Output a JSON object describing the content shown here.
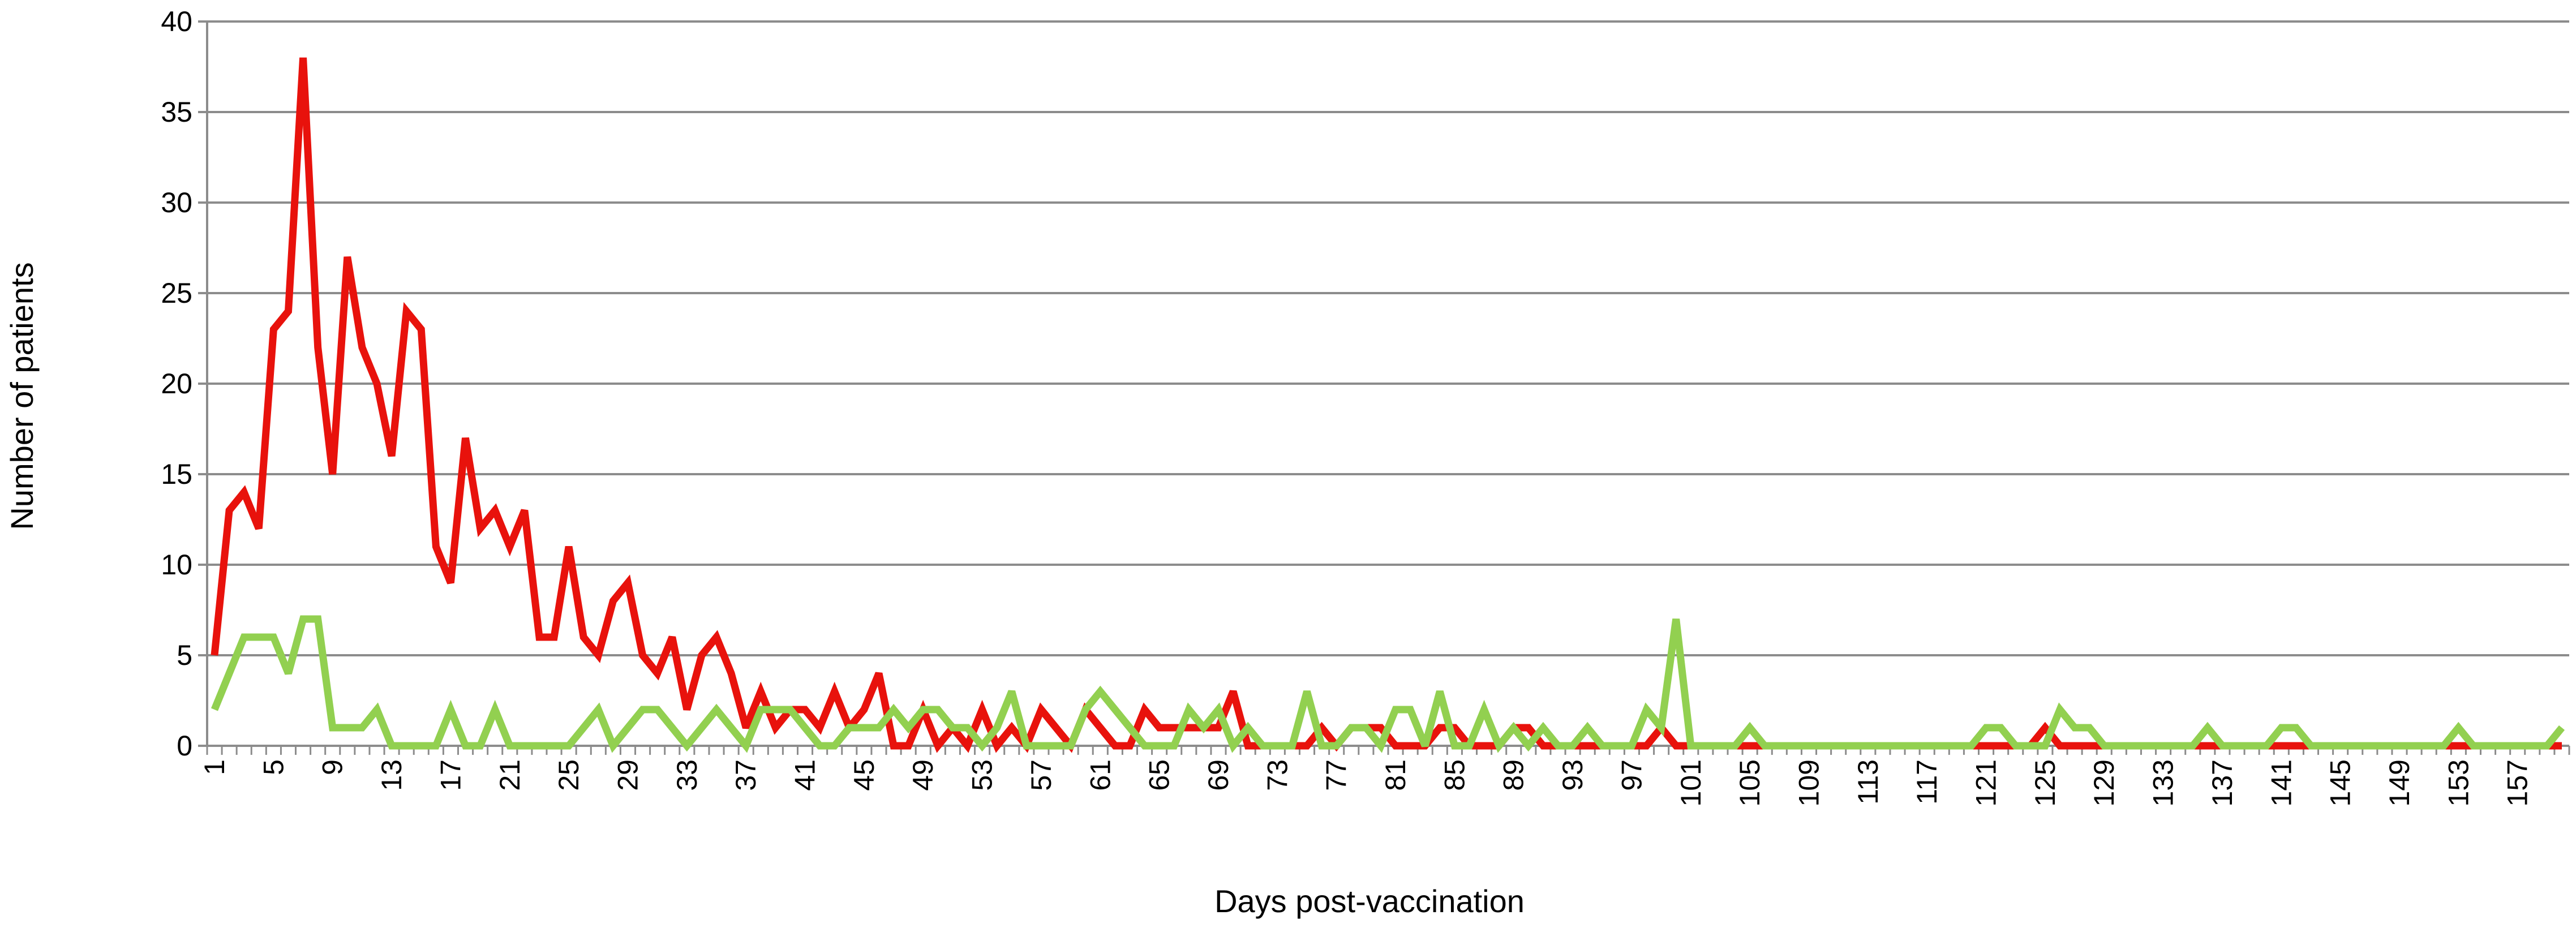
{
  "chart_data": {
    "type": "line",
    "xlabel": "Days post-vaccination",
    "ylabel": "Number of patients",
    "ylim": [
      0,
      40
    ],
    "yticks": [
      0,
      5,
      10,
      15,
      20,
      25,
      30,
      35,
      40
    ],
    "x_range": [
      1,
      160
    ],
    "xtick_labels": [
      "1",
      "5",
      "9",
      "13",
      "17",
      "21",
      "25",
      "29",
      "33",
      "37",
      "41",
      "45",
      "49",
      "53",
      "57",
      "61",
      "65",
      "69",
      "73",
      "77",
      "81",
      "85",
      "89",
      "93",
      "97",
      "101",
      "105",
      "109",
      "113",
      "117",
      "121",
      "125",
      "129",
      "133",
      "137",
      "141",
      "145",
      "149",
      "153",
      "157"
    ],
    "grid": "horizontal",
    "legend": "none",
    "series": [
      {
        "color": "#e8120c",
        "x": [
          1,
          2,
          3,
          4,
          5,
          6,
          7,
          8,
          9,
          10,
          11,
          12,
          13,
          14,
          15,
          16,
          17,
          18,
          19,
          20,
          21,
          22,
          23,
          24,
          25,
          26,
          27,
          28,
          29,
          30,
          31,
          32,
          33,
          34,
          35,
          36,
          37,
          38,
          39,
          40,
          41,
          42,
          43,
          44,
          45,
          46,
          47,
          48,
          49,
          50,
          51,
          52,
          53,
          54,
          55,
          56,
          57,
          58,
          59,
          60,
          61,
          62,
          63,
          64,
          65,
          66,
          67,
          68,
          69,
          70,
          71,
          72,
          73,
          74,
          75,
          76,
          77,
          78,
          79,
          80,
          81,
          82,
          83,
          84,
          85,
          86,
          87,
          88,
          89,
          90,
          91,
          92,
          93,
          94,
          95,
          96,
          97,
          98,
          99,
          100,
          101,
          102,
          103,
          104,
          105,
          106,
          107,
          108,
          109,
          110,
          111,
          112,
          113,
          114,
          115,
          116,
          117,
          118,
          119,
          120,
          121,
          122,
          123,
          124,
          125,
          126,
          127,
          128,
          129,
          130,
          131,
          132,
          133,
          134,
          135,
          136,
          137,
          138,
          139,
          140,
          141,
          142,
          143,
          144,
          145,
          146,
          147,
          148,
          149,
          150,
          151,
          152,
          153,
          154,
          155,
          156,
          157,
          158,
          159,
          160
        ],
        "values": [
          5,
          13,
          14,
          12,
          23,
          24,
          38,
          22,
          15,
          27,
          22,
          20,
          16,
          24,
          23,
          11,
          9,
          17,
          12,
          13,
          11,
          13,
          6,
          6,
          11,
          6,
          5,
          8,
          9,
          5,
          4,
          6,
          2,
          5,
          6,
          4,
          1,
          3,
          1,
          2,
          2,
          1,
          3,
          1,
          2,
          4,
          0,
          0,
          2,
          0,
          1,
          0,
          2,
          0,
          1,
          0,
          2,
          1,
          0,
          2,
          1,
          0,
          0,
          2,
          1,
          1,
          1,
          1,
          1,
          3,
          0,
          0,
          0,
          0,
          0,
          1,
          0,
          1,
          1,
          1,
          0,
          0,
          0,
          1,
          1,
          0,
          0,
          0,
          1,
          1,
          0,
          0,
          0,
          0,
          0,
          0,
          0,
          0,
          1,
          0,
          0,
          0,
          0,
          0,
          0,
          0,
          0,
          0,
          0,
          0,
          0,
          0,
          0,
          0,
          0,
          0,
          0,
          0,
          0,
          0,
          0,
          0,
          0,
          0,
          1,
          0,
          0,
          0,
          0,
          0,
          0,
          0,
          0,
          0,
          0,
          0,
          0,
          0,
          0,
          0,
          0,
          0,
          0,
          0,
          0,
          0,
          0,
          0,
          0,
          0,
          0,
          0,
          0,
          0,
          0,
          0,
          0,
          0,
          0,
          0
        ]
      },
      {
        "color": "#92d050",
        "x": [
          1,
          2,
          3,
          4,
          5,
          6,
          7,
          8,
          9,
          10,
          11,
          12,
          13,
          14,
          15,
          16,
          17,
          18,
          19,
          20,
          21,
          22,
          23,
          24,
          25,
          26,
          27,
          28,
          29,
          30,
          31,
          32,
          33,
          34,
          35,
          36,
          37,
          38,
          39,
          40,
          41,
          42,
          43,
          44,
          45,
          46,
          47,
          48,
          49,
          50,
          51,
          52,
          53,
          54,
          55,
          56,
          57,
          58,
          59,
          60,
          61,
          62,
          63,
          64,
          65,
          66,
          67,
          68,
          69,
          70,
          71,
          72,
          73,
          74,
          75,
          76,
          77,
          78,
          79,
          80,
          81,
          82,
          83,
          84,
          85,
          86,
          87,
          88,
          89,
          90,
          91,
          92,
          93,
          94,
          95,
          96,
          97,
          98,
          99,
          100,
          101,
          102,
          103,
          104,
          105,
          106,
          107,
          108,
          109,
          110,
          111,
          112,
          113,
          114,
          115,
          116,
          117,
          118,
          119,
          120,
          121,
          122,
          123,
          124,
          125,
          126,
          127,
          128,
          129,
          130,
          131,
          132,
          133,
          134,
          135,
          136,
          137,
          138,
          139,
          140,
          141,
          142,
          143,
          144,
          145,
          146,
          147,
          148,
          149,
          150,
          151,
          152,
          153,
          154,
          155,
          156,
          157,
          158,
          159,
          160
        ],
        "values": [
          2,
          4,
          6,
          6,
          6,
          4,
          7,
          7,
          1,
          1,
          1,
          2,
          0,
          0,
          0,
          0,
          2,
          0,
          0,
          2,
          0,
          0,
          0,
          0,
          0,
          1,
          2,
          0,
          1,
          2,
          2,
          1,
          0,
          1,
          2,
          1,
          0,
          2,
          2,
          2,
          1,
          0,
          0,
          1,
          1,
          1,
          2,
          1,
          2,
          2,
          1,
          1,
          0,
          1,
          3,
          0,
          0,
          0,
          0,
          2,
          3,
          2,
          1,
          0,
          0,
          0,
          2,
          1,
          2,
          0,
          1,
          0,
          0,
          0,
          3,
          0,
          0,
          1,
          1,
          0,
          2,
          2,
          0,
          3,
          0,
          0,
          2,
          0,
          1,
          0,
          1,
          0,
          0,
          1,
          0,
          0,
          0,
          2,
          1,
          7,
          0,
          0,
          0,
          0,
          1,
          0,
          0,
          0,
          0,
          0,
          0,
          0,
          0,
          0,
          0,
          0,
          0,
          0,
          0,
          0,
          1,
          1,
          0,
          0,
          0,
          2,
          1,
          1,
          0,
          0,
          0,
          0,
          0,
          0,
          0,
          1,
          0,
          0,
          0,
          0,
          1,
          1,
          0,
          0,
          0,
          0,
          0,
          0,
          0,
          0,
          0,
          0,
          1,
          0,
          0,
          0,
          0,
          0,
          0,
          1
        ]
      }
    ]
  }
}
